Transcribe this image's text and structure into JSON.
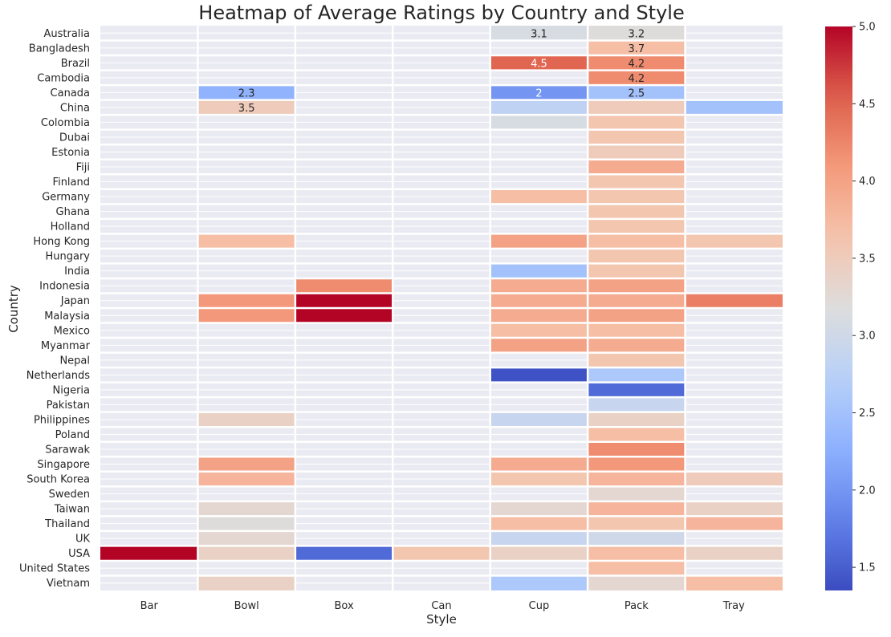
{
  "chart_data": {
    "type": "heatmap",
    "title": "Heatmap of Average Ratings by Country and Style",
    "xlabel": "Style",
    "ylabel": "Country",
    "x": [
      "Bar",
      "Bowl",
      "Box",
      "Can",
      "Cup",
      "Pack",
      "Tray"
    ],
    "y": [
      "Australia",
      "Bangladesh",
      "Brazil",
      "Cambodia",
      "Canada",
      "China",
      "Colombia",
      "Dubai",
      "Estonia",
      "Fiji",
      "Finland",
      "Germany",
      "Ghana",
      "Holland",
      "Hong Kong",
      "Hungary",
      "India",
      "Indonesia",
      "Japan",
      "Malaysia",
      "Mexico",
      "Myanmar",
      "Nepal",
      "Netherlands",
      "Nigeria",
      "Pakistan",
      "Philippines",
      "Poland",
      "Sarawak",
      "Singapore",
      "South Korea",
      "Sweden",
      "Taiwan",
      "Thailand",
      "UK",
      "USA",
      "United States",
      "Vietnam"
    ],
    "values": [
      [
        null,
        null,
        null,
        null,
        3.1,
        3.2,
        null
      ],
      [
        null,
        null,
        null,
        null,
        null,
        3.7,
        null
      ],
      [
        null,
        null,
        null,
        null,
        4.5,
        4.2,
        null
      ],
      [
        null,
        null,
        null,
        null,
        null,
        4.2,
        null
      ],
      [
        null,
        2.3,
        null,
        null,
        2.0,
        2.5,
        null
      ],
      [
        null,
        3.5,
        null,
        null,
        2.8,
        3.5,
        2.5
      ],
      [
        null,
        null,
        null,
        null,
        3.1,
        3.6,
        null
      ],
      [
        null,
        null,
        null,
        null,
        null,
        3.6,
        null
      ],
      [
        null,
        null,
        null,
        null,
        null,
        3.5,
        null
      ],
      [
        null,
        null,
        null,
        null,
        null,
        3.9,
        null
      ],
      [
        null,
        null,
        null,
        null,
        null,
        3.6,
        null
      ],
      [
        null,
        null,
        null,
        null,
        3.7,
        3.6,
        null
      ],
      [
        null,
        null,
        null,
        null,
        null,
        3.6,
        null
      ],
      [
        null,
        null,
        null,
        null,
        null,
        3.6,
        null
      ],
      [
        null,
        3.7,
        null,
        null,
        4.0,
        3.7,
        3.6
      ],
      [
        null,
        null,
        null,
        null,
        null,
        3.6,
        null
      ],
      [
        null,
        null,
        null,
        null,
        2.5,
        3.6,
        null
      ],
      [
        null,
        null,
        4.2,
        null,
        3.9,
        4.0,
        null
      ],
      [
        null,
        4.1,
        5.0,
        null,
        3.9,
        3.9,
        4.3
      ],
      [
        null,
        4.1,
        5.0,
        null,
        3.9,
        4.0,
        null
      ],
      [
        null,
        null,
        null,
        null,
        3.7,
        3.7,
        null
      ],
      [
        null,
        null,
        null,
        null,
        4.0,
        3.9,
        null
      ],
      [
        null,
        null,
        null,
        null,
        null,
        3.6,
        null
      ],
      [
        null,
        null,
        null,
        null,
        1.4,
        2.6,
        null
      ],
      [
        null,
        null,
        null,
        null,
        null,
        1.6,
        null
      ],
      [
        null,
        null,
        null,
        null,
        null,
        2.9,
        null
      ],
      [
        null,
        3.4,
        null,
        null,
        2.9,
        3.4,
        null
      ],
      [
        null,
        null,
        null,
        null,
        null,
        3.7,
        null
      ],
      [
        null,
        null,
        null,
        null,
        null,
        4.2,
        null
      ],
      [
        null,
        4.0,
        null,
        null,
        3.9,
        4.1,
        null
      ],
      [
        null,
        3.8,
        null,
        null,
        3.6,
        3.8,
        3.5
      ],
      [
        null,
        null,
        null,
        null,
        null,
        3.3,
        null
      ],
      [
        null,
        3.3,
        null,
        null,
        3.3,
        3.8,
        3.4
      ],
      [
        null,
        3.2,
        null,
        null,
        3.7,
        3.6,
        3.8
      ],
      [
        null,
        3.3,
        null,
        null,
        2.9,
        3.0,
        null
      ],
      [
        5.0,
        3.4,
        1.6,
        3.6,
        3.4,
        3.7,
        3.4
      ],
      [
        null,
        null,
        null,
        null,
        null,
        3.7,
        null
      ],
      [
        null,
        3.4,
        null,
        null,
        2.6,
        3.3,
        3.7
      ]
    ],
    "annotations": [
      {
        "row": 0,
        "col": 4,
        "text": "3.1"
      },
      {
        "row": 0,
        "col": 5,
        "text": "3.2"
      },
      {
        "row": 1,
        "col": 5,
        "text": "3.7"
      },
      {
        "row": 2,
        "col": 4,
        "text": "4.5"
      },
      {
        "row": 2,
        "col": 5,
        "text": "4.2"
      },
      {
        "row": 3,
        "col": 5,
        "text": "4.2"
      },
      {
        "row": 4,
        "col": 1,
        "text": "2.3"
      },
      {
        "row": 4,
        "col": 4,
        "text": "2"
      },
      {
        "row": 4,
        "col": 5,
        "text": "2.5"
      },
      {
        "row": 5,
        "col": 1,
        "text": "3.5"
      }
    ],
    "colormap": "coolwarm",
    "vmin": 1.35,
    "vmax": 5.0,
    "colorbar_ticks": [
      "1.5",
      "2.0",
      "2.5",
      "3.0",
      "3.5",
      "4.0",
      "4.5",
      "5.0"
    ],
    "grid": true,
    "background_color": "#eaeaf2",
    "line_color": "#ffffff"
  }
}
